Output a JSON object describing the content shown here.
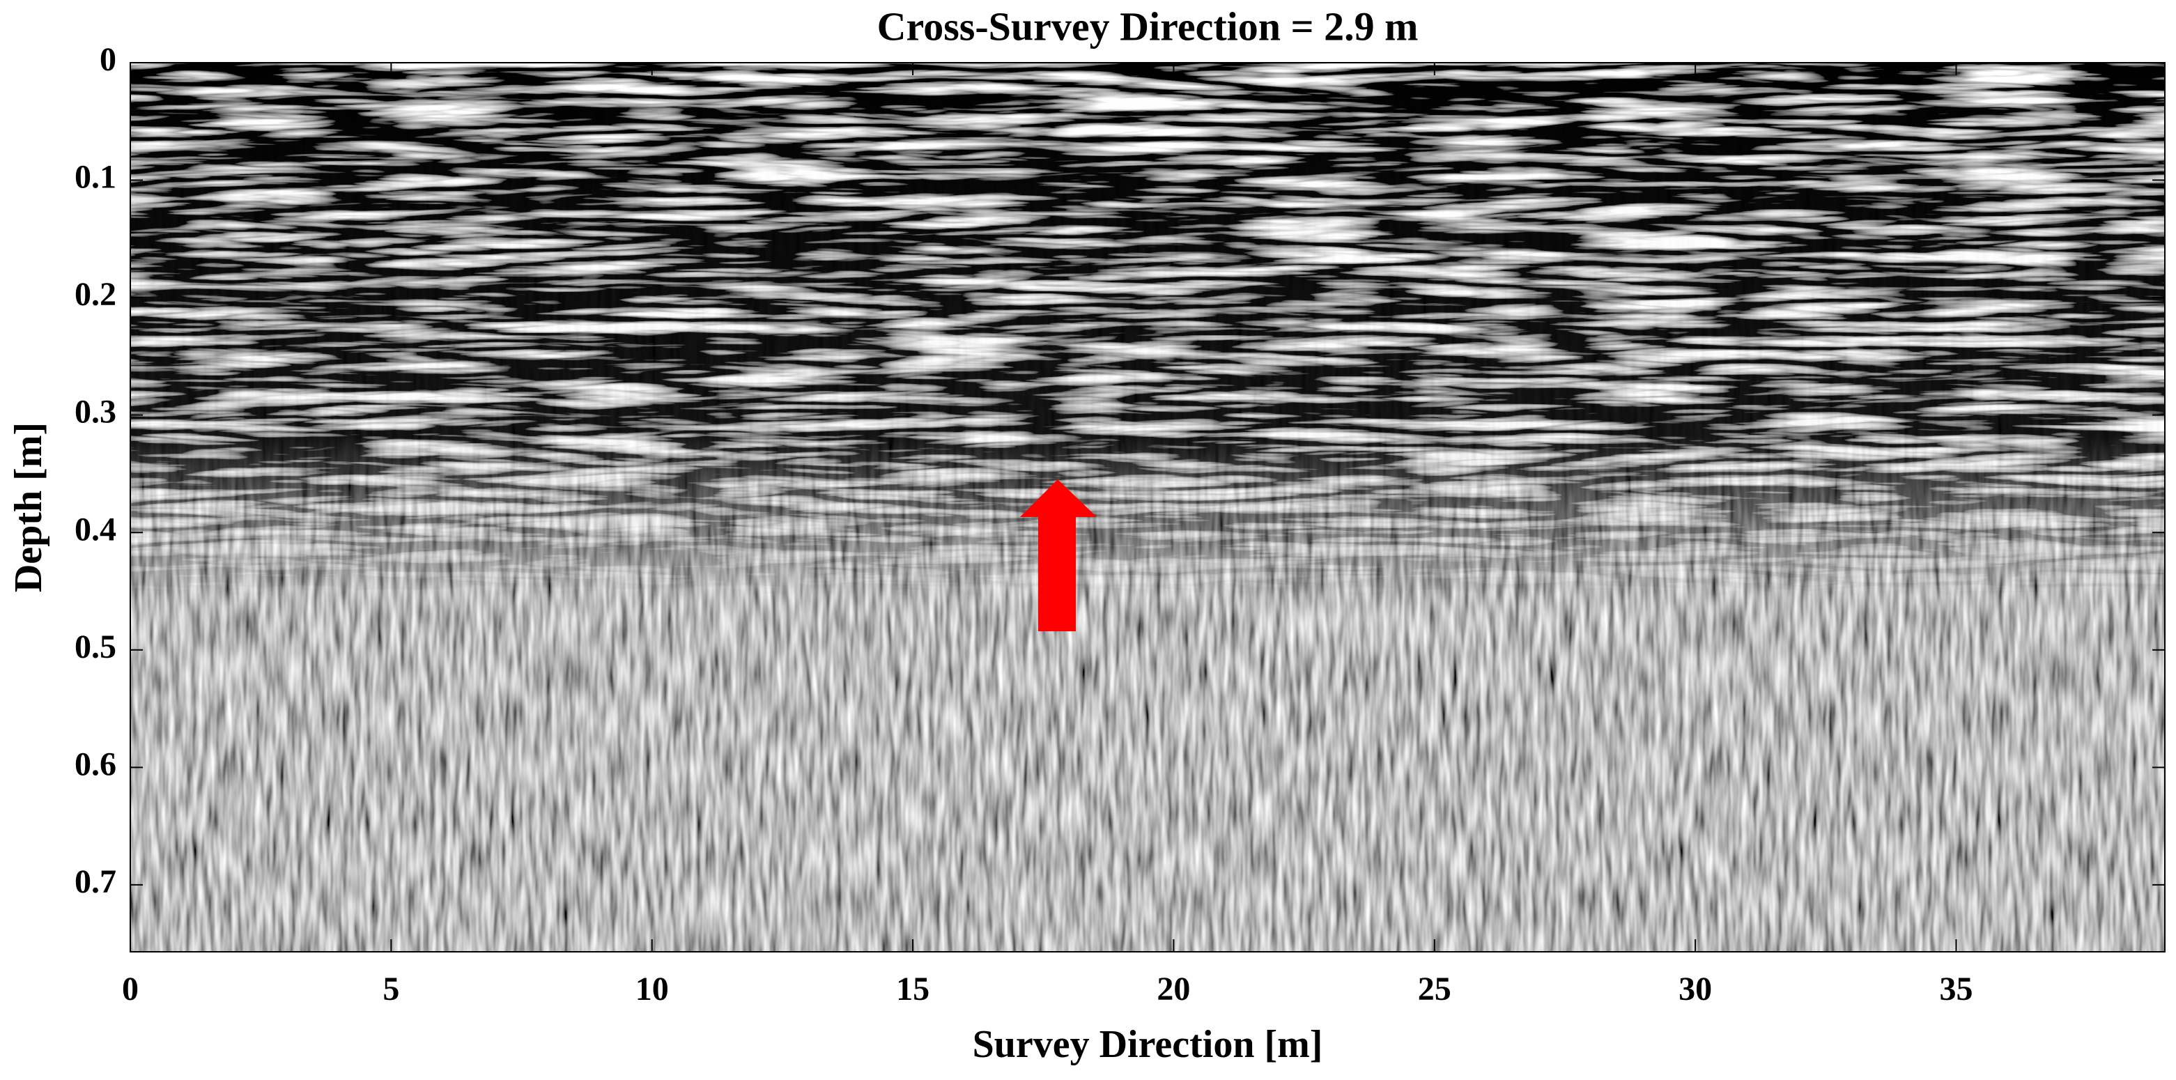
{
  "chart_data": {
    "type": "image",
    "title": "Cross-Survey Direction = 2.9 m",
    "x_label": "Survey Direction [m]",
    "y_label": "Depth [m]",
    "xlim": [
      0,
      39
    ],
    "xticks": [
      0,
      5,
      10,
      15,
      20,
      25,
      30,
      35
    ],
    "ylim": [
      0,
      0.757
    ],
    "yticks": [
      0,
      0.1,
      0.2,
      0.3,
      0.4,
      0.5,
      0.6,
      0.7
    ],
    "y_direction": "reverse",
    "colormap": "gray"
  }
}
